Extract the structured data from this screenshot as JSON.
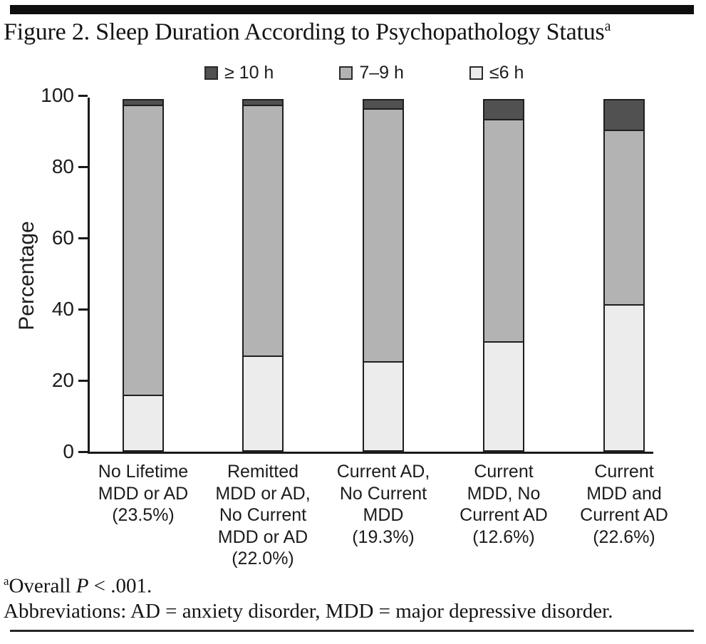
{
  "title": {
    "text": "Figure 2. Sleep Duration According to Psychopathology Status",
    "sup": "a"
  },
  "legend": [
    {
      "label": "≥ 10 h",
      "color": "#515151"
    },
    {
      "label": "7–9 h",
      "color": "#b3b3b3"
    },
    {
      "label": "≤6 h",
      "color": "#ececec"
    }
  ],
  "colors": {
    "ge10h": "#515151",
    "h7to9": "#b3b3b3",
    "le6h": "#ececec",
    "axis": "#1a1a1a",
    "segment_border": "#1f1f1f"
  },
  "chart_data": {
    "type": "bar",
    "stacked": true,
    "title": "Sleep Duration According to Psychopathology Status",
    "xlabel": "",
    "ylabel": "Percentage",
    "ylim": [
      0,
      100
    ],
    "yticks": [
      0,
      20,
      40,
      60,
      80,
      100
    ],
    "grid": false,
    "legend_position": "top",
    "categories": [
      [
        "No Lifetime",
        "MDD or AD",
        "(23.5%)"
      ],
      [
        "Remitted",
        "MDD or AD,",
        "No Current",
        "MDD or AD",
        "(22.0%)"
      ],
      [
        "Current AD,",
        "No Current",
        "MDD",
        "(19.3%)"
      ],
      [
        "Current",
        "MDD, No",
        "Current AD",
        "(12.6%)"
      ],
      [
        "Current",
        "MDD and",
        "Current AD",
        "(22.6%)"
      ]
    ],
    "series": [
      {
        "name": "≤6 h",
        "color": "#ececec",
        "values": [
          16,
          27,
          25.5,
          31,
          41.5
        ]
      },
      {
        "name": "7–9 h",
        "color": "#b3b3b3",
        "values": [
          82,
          71,
          71.5,
          63,
          49.5
        ]
      },
      {
        "name": "≥ 10 h",
        "color": "#515151",
        "values": [
          2,
          2,
          3,
          6,
          9
        ]
      }
    ]
  },
  "footnotes": {
    "sup": "a",
    "line1_pre": "Overall ",
    "line1_p": "P",
    "line1_post": " < .001.",
    "line2": "Abbreviations: AD = anxiety disorder, MDD = major depressive disorder."
  }
}
